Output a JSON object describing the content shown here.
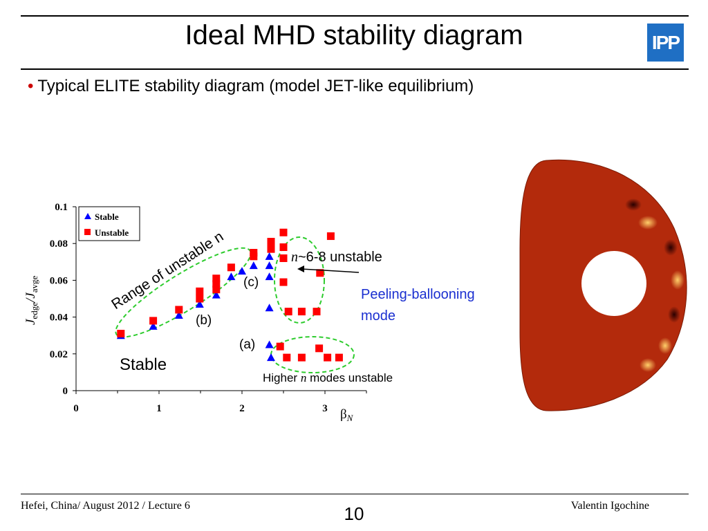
{
  "slide": {
    "title": "Ideal MHD stability diagram",
    "logo_text": "IPP",
    "bullet": "Typical ELITE stability diagram (model JET-like equilibrium)",
    "footer_left": "Hefei, China/ August 2012 / Lecture 6",
    "page_number": "10",
    "footer_right": "Valentin Igochine",
    "colors": {
      "accent": "#cc0000",
      "logo": "#1f6fc4",
      "annotation_blue": "#1a2fd0",
      "ellipse_green": "#2ecc2e"
    }
  },
  "chart_data": {
    "type": "scatter",
    "xlabel": "β",
    "xlabel_sub": "N",
    "ylabel_main": "J",
    "ylabel_sub1": "edge",
    "ylabel_slash": "/J",
    "ylabel_sub2": "avge",
    "xlim": [
      0,
      3.5
    ],
    "ylim": [
      0,
      0.1
    ],
    "x_ticks": [
      "0",
      "1",
      "2",
      "3"
    ],
    "y_ticks": [
      "0",
      "0.02",
      "0.04",
      "0.06",
      "0.08",
      "0.1"
    ],
    "legend_position": "top-left",
    "series": [
      {
        "name": "Stable",
        "marker": "triangle",
        "color": "#0000ff",
        "points": [
          [
            0.54,
            0.03
          ],
          [
            0.93,
            0.035
          ],
          [
            1.24,
            0.041
          ],
          [
            1.49,
            0.047
          ],
          [
            1.69,
            0.052
          ],
          [
            1.87,
            0.062
          ],
          [
            2.0,
            0.065
          ],
          [
            2.14,
            0.068
          ],
          [
            2.33,
            0.068
          ],
          [
            2.33,
            0.062
          ],
          [
            2.33,
            0.073
          ],
          [
            2.33,
            0.045
          ],
          [
            2.33,
            0.025
          ],
          [
            2.35,
            0.018
          ]
        ]
      },
      {
        "name": "Unstable",
        "marker": "square",
        "color": "#ff0000",
        "points": [
          [
            0.54,
            0.031
          ],
          [
            0.93,
            0.038
          ],
          [
            1.24,
            0.044
          ],
          [
            1.49,
            0.05
          ],
          [
            1.49,
            0.054
          ],
          [
            1.69,
            0.055
          ],
          [
            1.69,
            0.058
          ],
          [
            1.69,
            0.061
          ],
          [
            1.87,
            0.067
          ],
          [
            2.14,
            0.073
          ],
          [
            2.14,
            0.075
          ],
          [
            2.35,
            0.077
          ],
          [
            2.35,
            0.08
          ],
          [
            2.35,
            0.081
          ],
          [
            2.5,
            0.086
          ],
          [
            2.5,
            0.078
          ],
          [
            2.5,
            0.072
          ],
          [
            2.5,
            0.059
          ],
          [
            2.56,
            0.043
          ],
          [
            2.72,
            0.043
          ],
          [
            2.9,
            0.043
          ],
          [
            2.94,
            0.064
          ],
          [
            3.07,
            0.084
          ],
          [
            2.46,
            0.024
          ],
          [
            2.54,
            0.018
          ],
          [
            2.72,
            0.018
          ],
          [
            2.93,
            0.023
          ],
          [
            3.03,
            0.018
          ],
          [
            3.17,
            0.018
          ]
        ]
      }
    ],
    "annotations": {
      "range_label": "Range of unstable n",
      "label_a": "(a)",
      "label_b": "(b)",
      "label_c": "(c)",
      "stable_label": "Stable",
      "n_unstable_italic": "n",
      "n_unstable_rest": "~6-8 unstable",
      "peeling_line1": "Peeling-ballooning",
      "peeling_line2": "mode",
      "higher_pre": "Higher",
      "higher_n": "n",
      "higher_post": "modes unstable"
    }
  }
}
